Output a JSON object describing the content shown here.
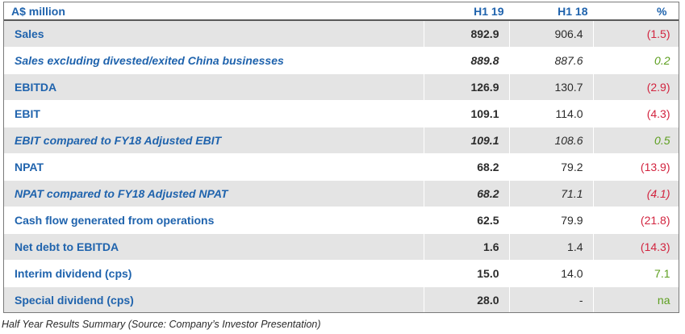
{
  "table": {
    "headers": [
      "A$ million",
      "H1 19",
      "H1 18",
      "%"
    ],
    "rows": [
      {
        "label": "Sales",
        "h19": "892.9",
        "h18": "906.4",
        "pct": "(1.5)",
        "pct_tone": "neg",
        "italic": false
      },
      {
        "label": "Sales excluding divested/exited China businesses",
        "h19": "889.8",
        "h18": "887.6",
        "pct": "0.2",
        "pct_tone": "pos",
        "italic": true
      },
      {
        "label": "EBITDA",
        "h19": "126.9",
        "h18": "130.7",
        "pct": "(2.9)",
        "pct_tone": "neg",
        "italic": false
      },
      {
        "label": "EBIT",
        "h19": "109.1",
        "h18": "114.0",
        "pct": "(4.3)",
        "pct_tone": "neg",
        "italic": false
      },
      {
        "label": "EBIT compared to FY18 Adjusted EBIT",
        "h19": "109.1",
        "h18": "108.6",
        "pct": "0.5",
        "pct_tone": "pos",
        "italic": true
      },
      {
        "label": "NPAT",
        "h19": "68.2",
        "h18": "79.2",
        "pct": "(13.9)",
        "pct_tone": "neg",
        "italic": false
      },
      {
        "label": "NPAT compared to FY18 Adjusted NPAT",
        "h19": "68.2",
        "h18": "71.1",
        "pct": "(4.1)",
        "pct_tone": "neg",
        "italic": true
      },
      {
        "label": "Cash flow generated from operations",
        "h19": "62.5",
        "h18": "79.9",
        "pct": "(21.8)",
        "pct_tone": "neg",
        "italic": false
      },
      {
        "label": "Net debt to EBITDA",
        "h19": "1.6",
        "h18": "1.4",
        "pct": "(14.3)",
        "pct_tone": "neg",
        "italic": false
      },
      {
        "label": "Interim dividend (cps)",
        "h19": "15.0",
        "h18": "14.0",
        "pct": "7.1",
        "pct_tone": "pos",
        "italic": false
      },
      {
        "label": "Special dividend (cps)",
        "h19": "28.0",
        "h18": "-",
        "pct": "na",
        "pct_tone": "pos",
        "italic": false
      }
    ]
  },
  "caption": "Half Year Results Summary (Source: Company’s Investor Presentation)",
  "colors": {
    "label": "#1f63ad",
    "negative": "#d2243f",
    "positive": "#5c9e1e",
    "row_shade": "#e4e4e4"
  }
}
